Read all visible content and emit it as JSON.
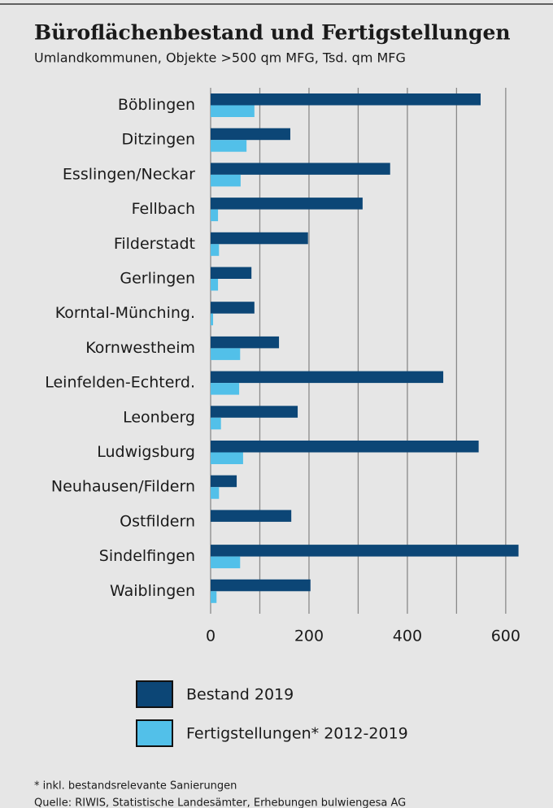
{
  "chart_data": {
    "type": "bar",
    "orientation": "horizontal",
    "title": "Büroflächenbestand und Fertigstellungen",
    "subtitle": "Umlandkommunen, Objekte >500 qm MFG, Tsd. qm MFG",
    "categories": [
      "Böblingen",
      "Ditzingen",
      "Esslingen/Neckar",
      "Fellbach",
      "Filderstadt",
      "Gerlingen",
      "Korntal-Münching.",
      "Kornwestheim",
      "Leinfelden-Echterd.",
      "Leonberg",
      "Ludwigsburg",
      "Neuhausen/Fildern",
      "Ostfildern",
      "Sindelfingen",
      "Waiblingen"
    ],
    "series": [
      {
        "name": "Bestand 2019",
        "color": "#0c4676",
        "values": [
          549,
          162,
          365,
          309,
          198,
          83,
          89,
          139,
          473,
          177,
          545,
          53,
          164,
          626,
          203
        ]
      },
      {
        "name": "Fertigstellungen* 2012-2019",
        "color": "#52c0e9",
        "values": [
          89,
          73,
          61,
          15,
          17,
          15,
          5,
          60,
          58,
          21,
          66,
          17,
          0,
          60,
          12
        ]
      }
    ],
    "xlim": [
      0,
      630
    ],
    "xticks": [
      0,
      200,
      400,
      600
    ],
    "xgrid": [
      0,
      100,
      200,
      300,
      400,
      500,
      600
    ],
    "grid": true,
    "footnotes": [
      "* inkl. bestandsrelevante Sanierungen",
      "Quelle: RIWIS, Statistische Landesämter, Erhebungen bulwiengesa AG"
    ]
  }
}
